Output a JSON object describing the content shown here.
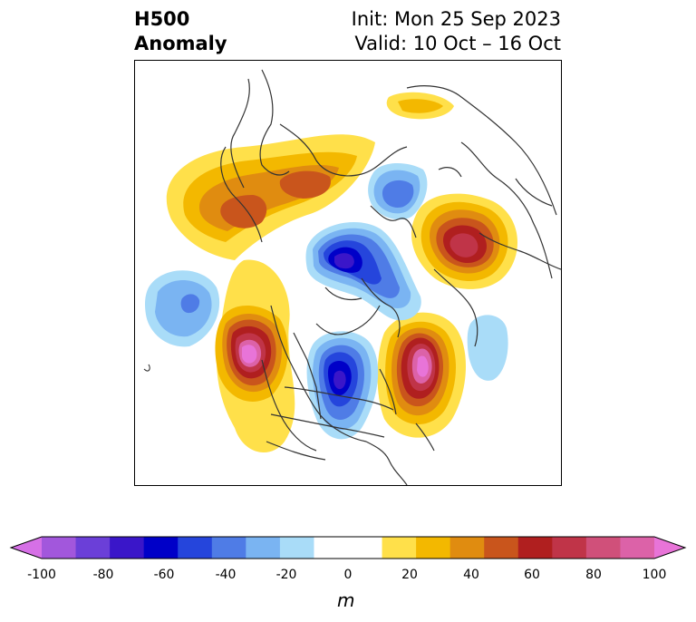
{
  "title": {
    "left_line1": "H500",
    "left_line2": "Anomaly",
    "right_line1": "Init: Mon 25 Sep 2023",
    "right_line2": "Valid: 10 Oct – 16 Oct"
  },
  "colorbar": {
    "units": "m",
    "ticks": [
      "-100",
      "-80",
      "-60",
      "-40",
      "-20",
      "0",
      "20",
      "40",
      "60",
      "80",
      "100"
    ],
    "colors": [
      "#d670e6",
      "#a257dc",
      "#6b3fd8",
      "#3a16c9",
      "#0000c8",
      "#2545dc",
      "#4f7ce6",
      "#7ab4f2",
      "#a9dcf8",
      "#ffffff",
      "#ffffff",
      "#ffe04a",
      "#f3b800",
      "#e08c10",
      "#c9551c",
      "#b01f1f",
      "#c03448",
      "#d0507a",
      "#dc62a8",
      "#e874d8"
    ]
  },
  "map": {
    "projection": "north-polar-stereographic",
    "variable": "500 hPa geopotential height anomaly"
  }
}
